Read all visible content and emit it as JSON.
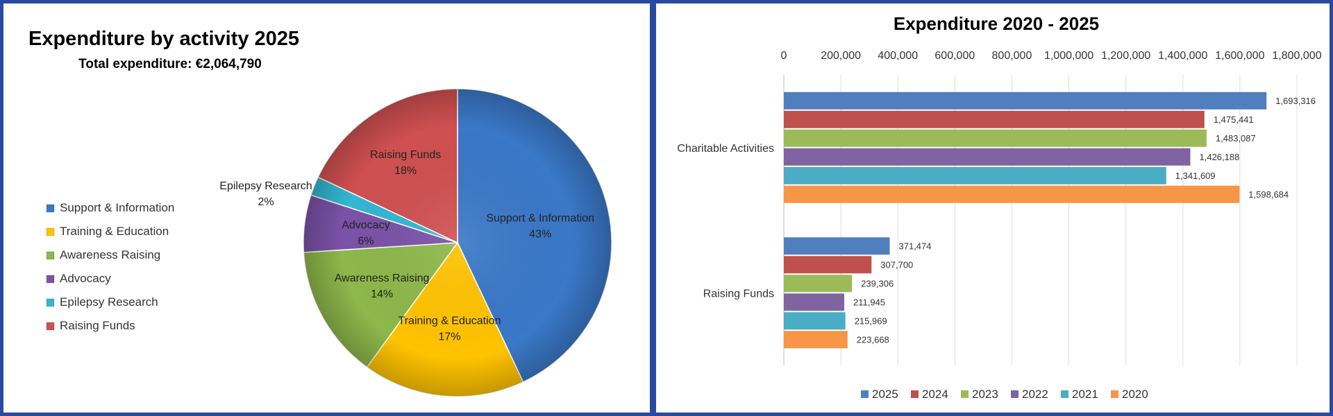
{
  "chart_data": [
    {
      "type": "pie",
      "title": "Expenditure by activity 2025",
      "subtitle": "Total expenditure: €2,064,790",
      "slices": [
        {
          "label": "Support & Information",
          "percent": 43,
          "percent_text": "43%",
          "color": "#3a78c8"
        },
        {
          "label": "Training & Education",
          "percent": 17,
          "percent_text": "17%",
          "color": "#ffc300"
        },
        {
          "label": "Awareness Raising",
          "percent": 14,
          "percent_text": "14%",
          "color": "#8db84a"
        },
        {
          "label": "Advocacy",
          "percent": 6,
          "percent_text": "6%",
          "color": "#7b52a8"
        },
        {
          "label": "Epilepsy Research",
          "percent": 2,
          "percent_text": "2%",
          "color": "#35b6d2"
        },
        {
          "label": "Raising Funds",
          "percent": 18,
          "percent_text": "18%",
          "color": "#d05050"
        }
      ],
      "legend_position": "left"
    },
    {
      "type": "bar",
      "orientation": "horizontal",
      "title": "Expenditure 2020 - 2025",
      "categories": [
        "Charitable Activities",
        "Raising Funds"
      ],
      "series": [
        {
          "name": "2025",
          "color": "#4f7fbe",
          "values": [
            1693316,
            371474
          ],
          "labels": [
            "1,693,316",
            "371,474"
          ]
        },
        {
          "name": "2024",
          "color": "#c0504d",
          "values": [
            1475441,
            307700
          ],
          "labels": [
            "1,475,441",
            "307,700"
          ]
        },
        {
          "name": "2023",
          "color": "#9bbb59",
          "values": [
            1483087,
            239306
          ],
          "labels": [
            "1,483,087",
            "239,306"
          ]
        },
        {
          "name": "2022",
          "color": "#8064a2",
          "values": [
            1426188,
            211945
          ],
          "labels": [
            "1,426,188",
            "211,945"
          ]
        },
        {
          "name": "2021",
          "color": "#4bacc6",
          "values": [
            1341609,
            215969
          ],
          "labels": [
            "1,341,609",
            "215,969"
          ]
        },
        {
          "name": "2020",
          "color": "#f79646",
          "values": [
            1598684,
            223668
          ],
          "labels": [
            "1,598,684",
            "223,668"
          ]
        }
      ],
      "xlim": [
        0,
        1800000
      ],
      "xticks": [
        0,
        200000,
        400000,
        600000,
        800000,
        1000000,
        1200000,
        1400000,
        1600000,
        1800000
      ],
      "xtick_labels": [
        "0",
        "200,000",
        "400,000",
        "600,000",
        "800,000",
        "1,000,000",
        "1,200,000",
        "1,400,000",
        "1,600,000",
        "1,800,000"
      ],
      "axis_position": "top",
      "grid": true,
      "legend_position": "bottom"
    }
  ]
}
